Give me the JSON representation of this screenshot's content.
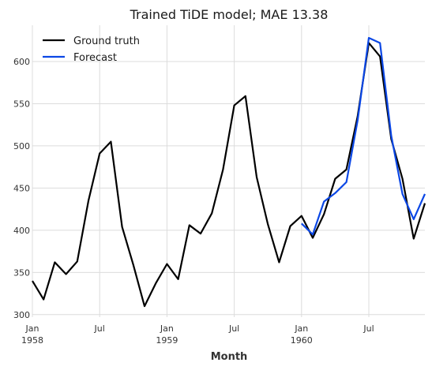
{
  "chart_data": {
    "type": "line",
    "title": "Trained TiDE model; MAE 13.38",
    "xlabel": "Month",
    "ylabel": "",
    "ylim": [
      297,
      643
    ],
    "yticks": [
      300,
      350,
      400,
      450,
      500,
      550,
      600
    ],
    "xticks": [
      {
        "month": 0,
        "label": [
          "Jan",
          "1958"
        ]
      },
      {
        "month": 6,
        "label": [
          "Jul"
        ]
      },
      {
        "month": 12,
        "label": [
          "Jan",
          "1959"
        ]
      },
      {
        "month": 18,
        "label": [
          "Jul"
        ]
      },
      {
        "month": 24,
        "label": [
          "Jan",
          "1960"
        ]
      },
      {
        "month": 30,
        "label": [
          "Jul"
        ]
      }
    ],
    "xlim": [
      0,
      35
    ],
    "grid": true,
    "legend_position": "top-left",
    "series": [
      {
        "name": "Ground truth",
        "color": "#000000",
        "start_month": 0,
        "values": [
          340,
          318,
          362,
          348,
          363,
          435,
          491,
          505,
          404,
          359,
          310,
          337,
          360,
          342,
          406,
          396,
          420,
          472,
          548,
          559,
          463,
          407,
          362,
          405,
          417,
          391,
          419,
          461,
          472,
          535,
          622,
          606,
          508,
          461,
          390,
          432
        ]
      },
      {
        "name": "Forecast",
        "color": "#0b47e5",
        "start_month": 24,
        "values": [
          408,
          395,
          434,
          444,
          457,
          530,
          628,
          622,
          512,
          443,
          413,
          443
        ]
      }
    ]
  }
}
